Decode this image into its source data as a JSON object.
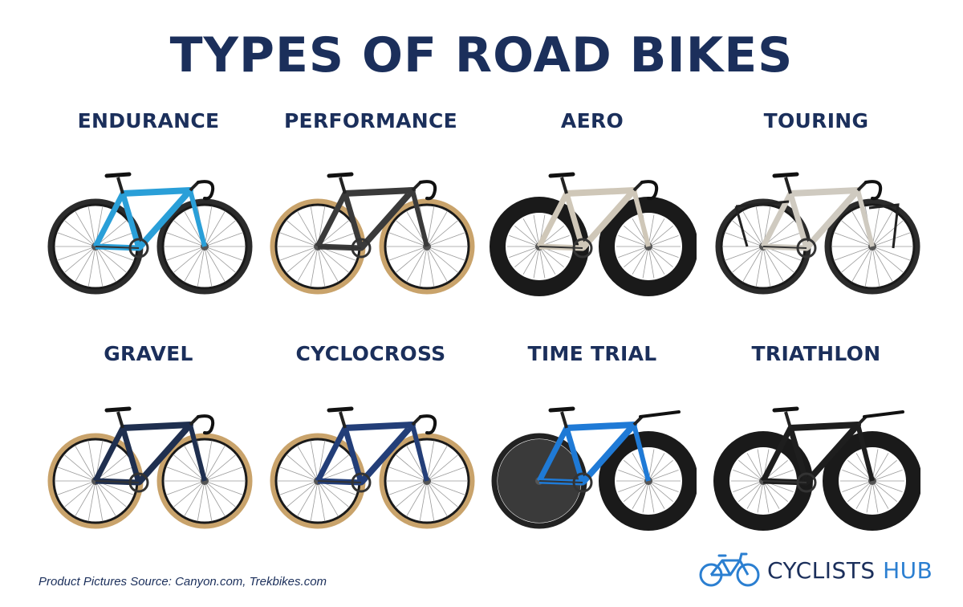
{
  "title": "TYPES OF ROAD BIKES",
  "bikes": [
    {
      "label": "ENDURANCE",
      "frame_color": "#2a9fd8",
      "tire_color": "#2b2b2b",
      "rim": "standard"
    },
    {
      "label": "PERFORMANCE",
      "frame_color": "#3a3a3a",
      "tire_color": "#c9a36b",
      "rim": "standard"
    },
    {
      "label": "AERO",
      "frame_color": "#cfc7b8",
      "tire_color": "#222222",
      "rim": "deep"
    },
    {
      "label": "TOURING",
      "frame_color": "#cfcac0",
      "tire_color": "#2b2b2b",
      "rim": "standard"
    },
    {
      "label": "GRAVEL",
      "frame_color": "#1f2f4f",
      "tire_color": "#c9a36b",
      "rim": "standard"
    },
    {
      "label": "CYCLOCROSS",
      "frame_color": "#233e78",
      "tire_color": "#c9a36b",
      "rim": "standard"
    },
    {
      "label": "TIME TRIAL",
      "frame_color": "#1f7ad6",
      "tire_color": "#222222",
      "rim": "disc"
    },
    {
      "label": "TRIATHLON",
      "frame_color": "#1e1e1e",
      "tire_color": "#222222",
      "rim": "deep"
    }
  ],
  "footer": "Product Pictures Source: Canyon.com, Trekbikes.com",
  "brand": {
    "part1": "CYCLISTS",
    "part2": "HUB",
    "icon": "bicycle-icon",
    "color_dark": "#1b2f5b",
    "color_accent": "#2b7fd1"
  }
}
